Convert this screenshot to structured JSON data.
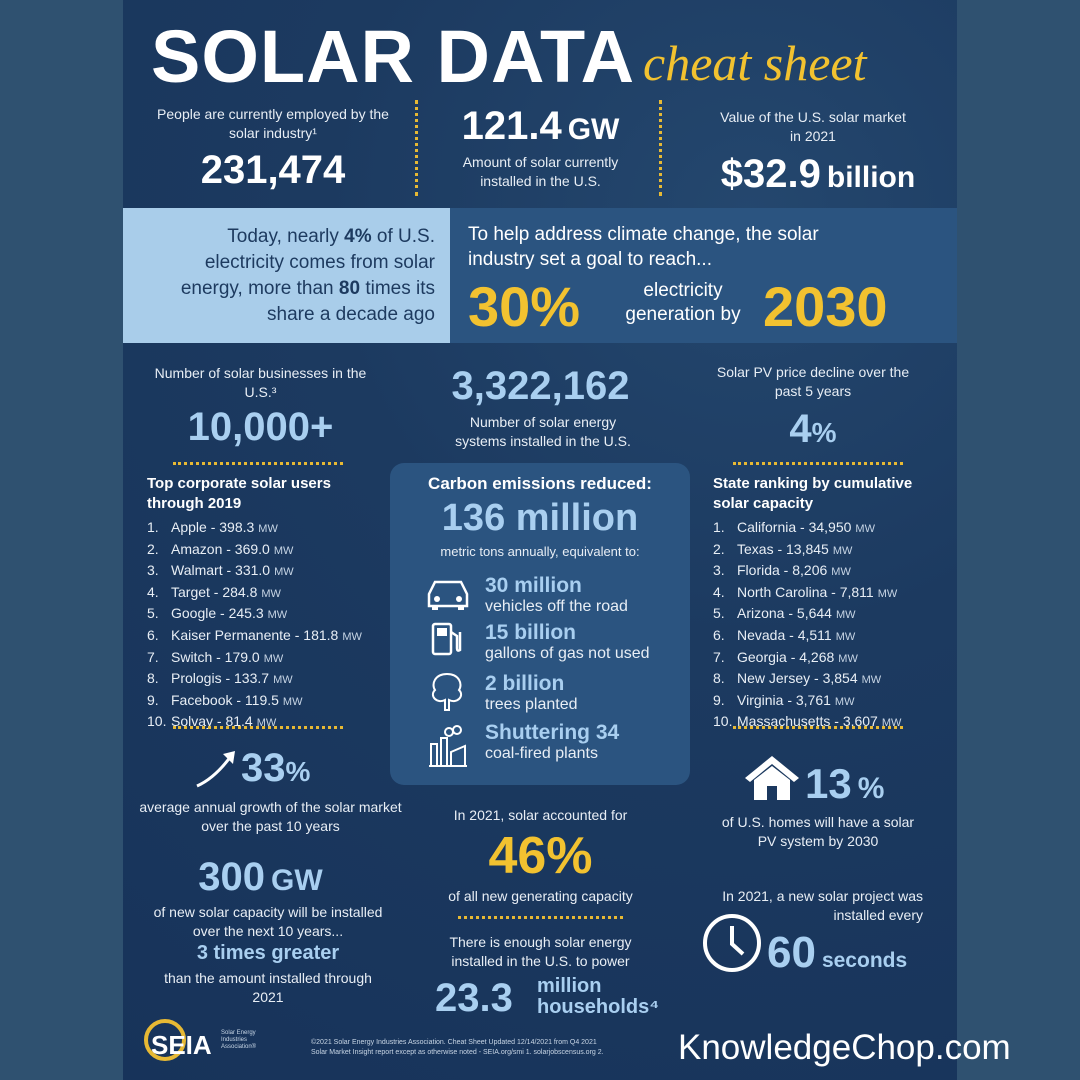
{
  "header": {
    "title": "SOLAR DATA",
    "subtitle": "cheat sheet"
  },
  "stats": [
    {
      "label": "People are currently employed by the solar industry¹",
      "value": "231,474"
    },
    {
      "value": "121.4",
      "unit": "GW",
      "label": "Amount of solar currently installed in the U.S."
    },
    {
      "label": "Value of the U.S. solar market in 2021",
      "value": "$32.9",
      "unit": "billion"
    }
  ],
  "banner": {
    "left": [
      "Today, nearly ",
      "4%",
      " of U.S. electricity comes from solar energy, more than ",
      "80",
      " times its share a decade ago"
    ],
    "right_intro": "To help address climate change, the solar industry set a goal to reach...",
    "goal_value": "30%",
    "goal_text": "electricity generation by",
    "goal_year": "2030"
  },
  "businesses": {
    "label": "Number of solar businesses in the U.S.³",
    "value": "10,000+"
  },
  "systems": {
    "value": "3,322,162",
    "label": "Number of solar energy systems installed in the U.S."
  },
  "price": {
    "label": "Solar PV price decline over the past 5 years",
    "value": "4",
    "unit": "%"
  },
  "corporate": {
    "title": "Top corporate solar users through 2019",
    "items": [
      {
        "rank": "1.",
        "text": "Apple - 398.3",
        "unit": "MW"
      },
      {
        "rank": "2.",
        "text": "Amazon - 369.0",
        "unit": "MW"
      },
      {
        "rank": "3.",
        "text": "Walmart - 331.0",
        "unit": "MW"
      },
      {
        "rank": "4.",
        "text": "Target - 284.8",
        "unit": "MW"
      },
      {
        "rank": "5.",
        "text": "Google - 245.3",
        "unit": "MW"
      },
      {
        "rank": "6.",
        "text": "Kaiser Permanente - 181.8",
        "unit": "MW"
      },
      {
        "rank": "7.",
        "text": "Switch - 179.0",
        "unit": "MW"
      },
      {
        "rank": "8.",
        "text": "Prologis - 133.7",
        "unit": "MW"
      },
      {
        "rank": "9.",
        "text": "Facebook - 119.5",
        "unit": "MW"
      },
      {
        "rank": "10.",
        "text": "Solvay - 81.4",
        "unit": "MW"
      }
    ]
  },
  "carbon": {
    "title": "Carbon emissions reduced:",
    "value": "136 million",
    "label": "metric tons annually, equivalent to:",
    "items": [
      {
        "title": "30 million",
        "text": "vehicles off the road"
      },
      {
        "title": "15 billion",
        "text": "gallons of gas not used"
      },
      {
        "title": "2 billion",
        "text": "trees planted"
      },
      {
        "title": "Shuttering 34",
        "text": "coal-fired plants"
      }
    ]
  },
  "states": {
    "title": "State ranking by cumulative solar capacity",
    "items": [
      {
        "rank": "1.",
        "text": "California - 34,950",
        "unit": "MW"
      },
      {
        "rank": "2.",
        "text": "Texas - 13,845",
        "unit": "MW"
      },
      {
        "rank": "3.",
        "text": "Florida - 8,206",
        "unit": "MW"
      },
      {
        "rank": "4.",
        "text": "North Carolina - 7,811",
        "unit": "MW"
      },
      {
        "rank": "5.",
        "text": "Arizona - 5,644",
        "unit": "MW"
      },
      {
        "rank": "6.",
        "text": "Nevada - 4,511",
        "unit": "MW"
      },
      {
        "rank": "7.",
        "text": "Georgia - 4,268",
        "unit": "MW"
      },
      {
        "rank": "8.",
        "text": "New Jersey - 3,854",
        "unit": "MW"
      },
      {
        "rank": "9.",
        "text": "Virginia - 3,761",
        "unit": "MW"
      },
      {
        "rank": "10.",
        "text": "Massachusetts - 3,607",
        "unit": "MW"
      }
    ]
  },
  "growth": {
    "value": "33",
    "unit": "%",
    "label": "average annual growth of the solar market over the past 10 years"
  },
  "capacity_share": {
    "label": "In 2021, solar accounted for",
    "value": "46%",
    "text": "of all new generating capacity"
  },
  "homes": {
    "value": "13",
    "unit": "%",
    "label": "of U.S. homes will have a solar PV system by 2030"
  },
  "future": {
    "value": "300",
    "unit": "GW",
    "label": "of new solar capacity will be installed over the next 10 years...",
    "highlight": "3 times greater",
    "text": "than the amount installed through 2021"
  },
  "households": {
    "label": "There is enough solar energy installed in the U.S. to power",
    "value": "23.3",
    "unit": "million households⁴"
  },
  "frequency": {
    "label": "In 2021, a new solar project was installed every",
    "value": "60",
    "unit": "seconds"
  },
  "footer": {
    "logo": "SEIA",
    "logo_text": "Solar Energy Industries Association®",
    "notes": [
      "©2021 Solar Energy Industries Association. Cheat Sheet Updated 12/14/2021 from Q4 2021",
      "Solar Market Insight report except as otherwise noted - SEIA.org/smi 1. solarjobscensus.org 2."
    ]
  },
  "watermark": "KnowledgeChop.com"
}
